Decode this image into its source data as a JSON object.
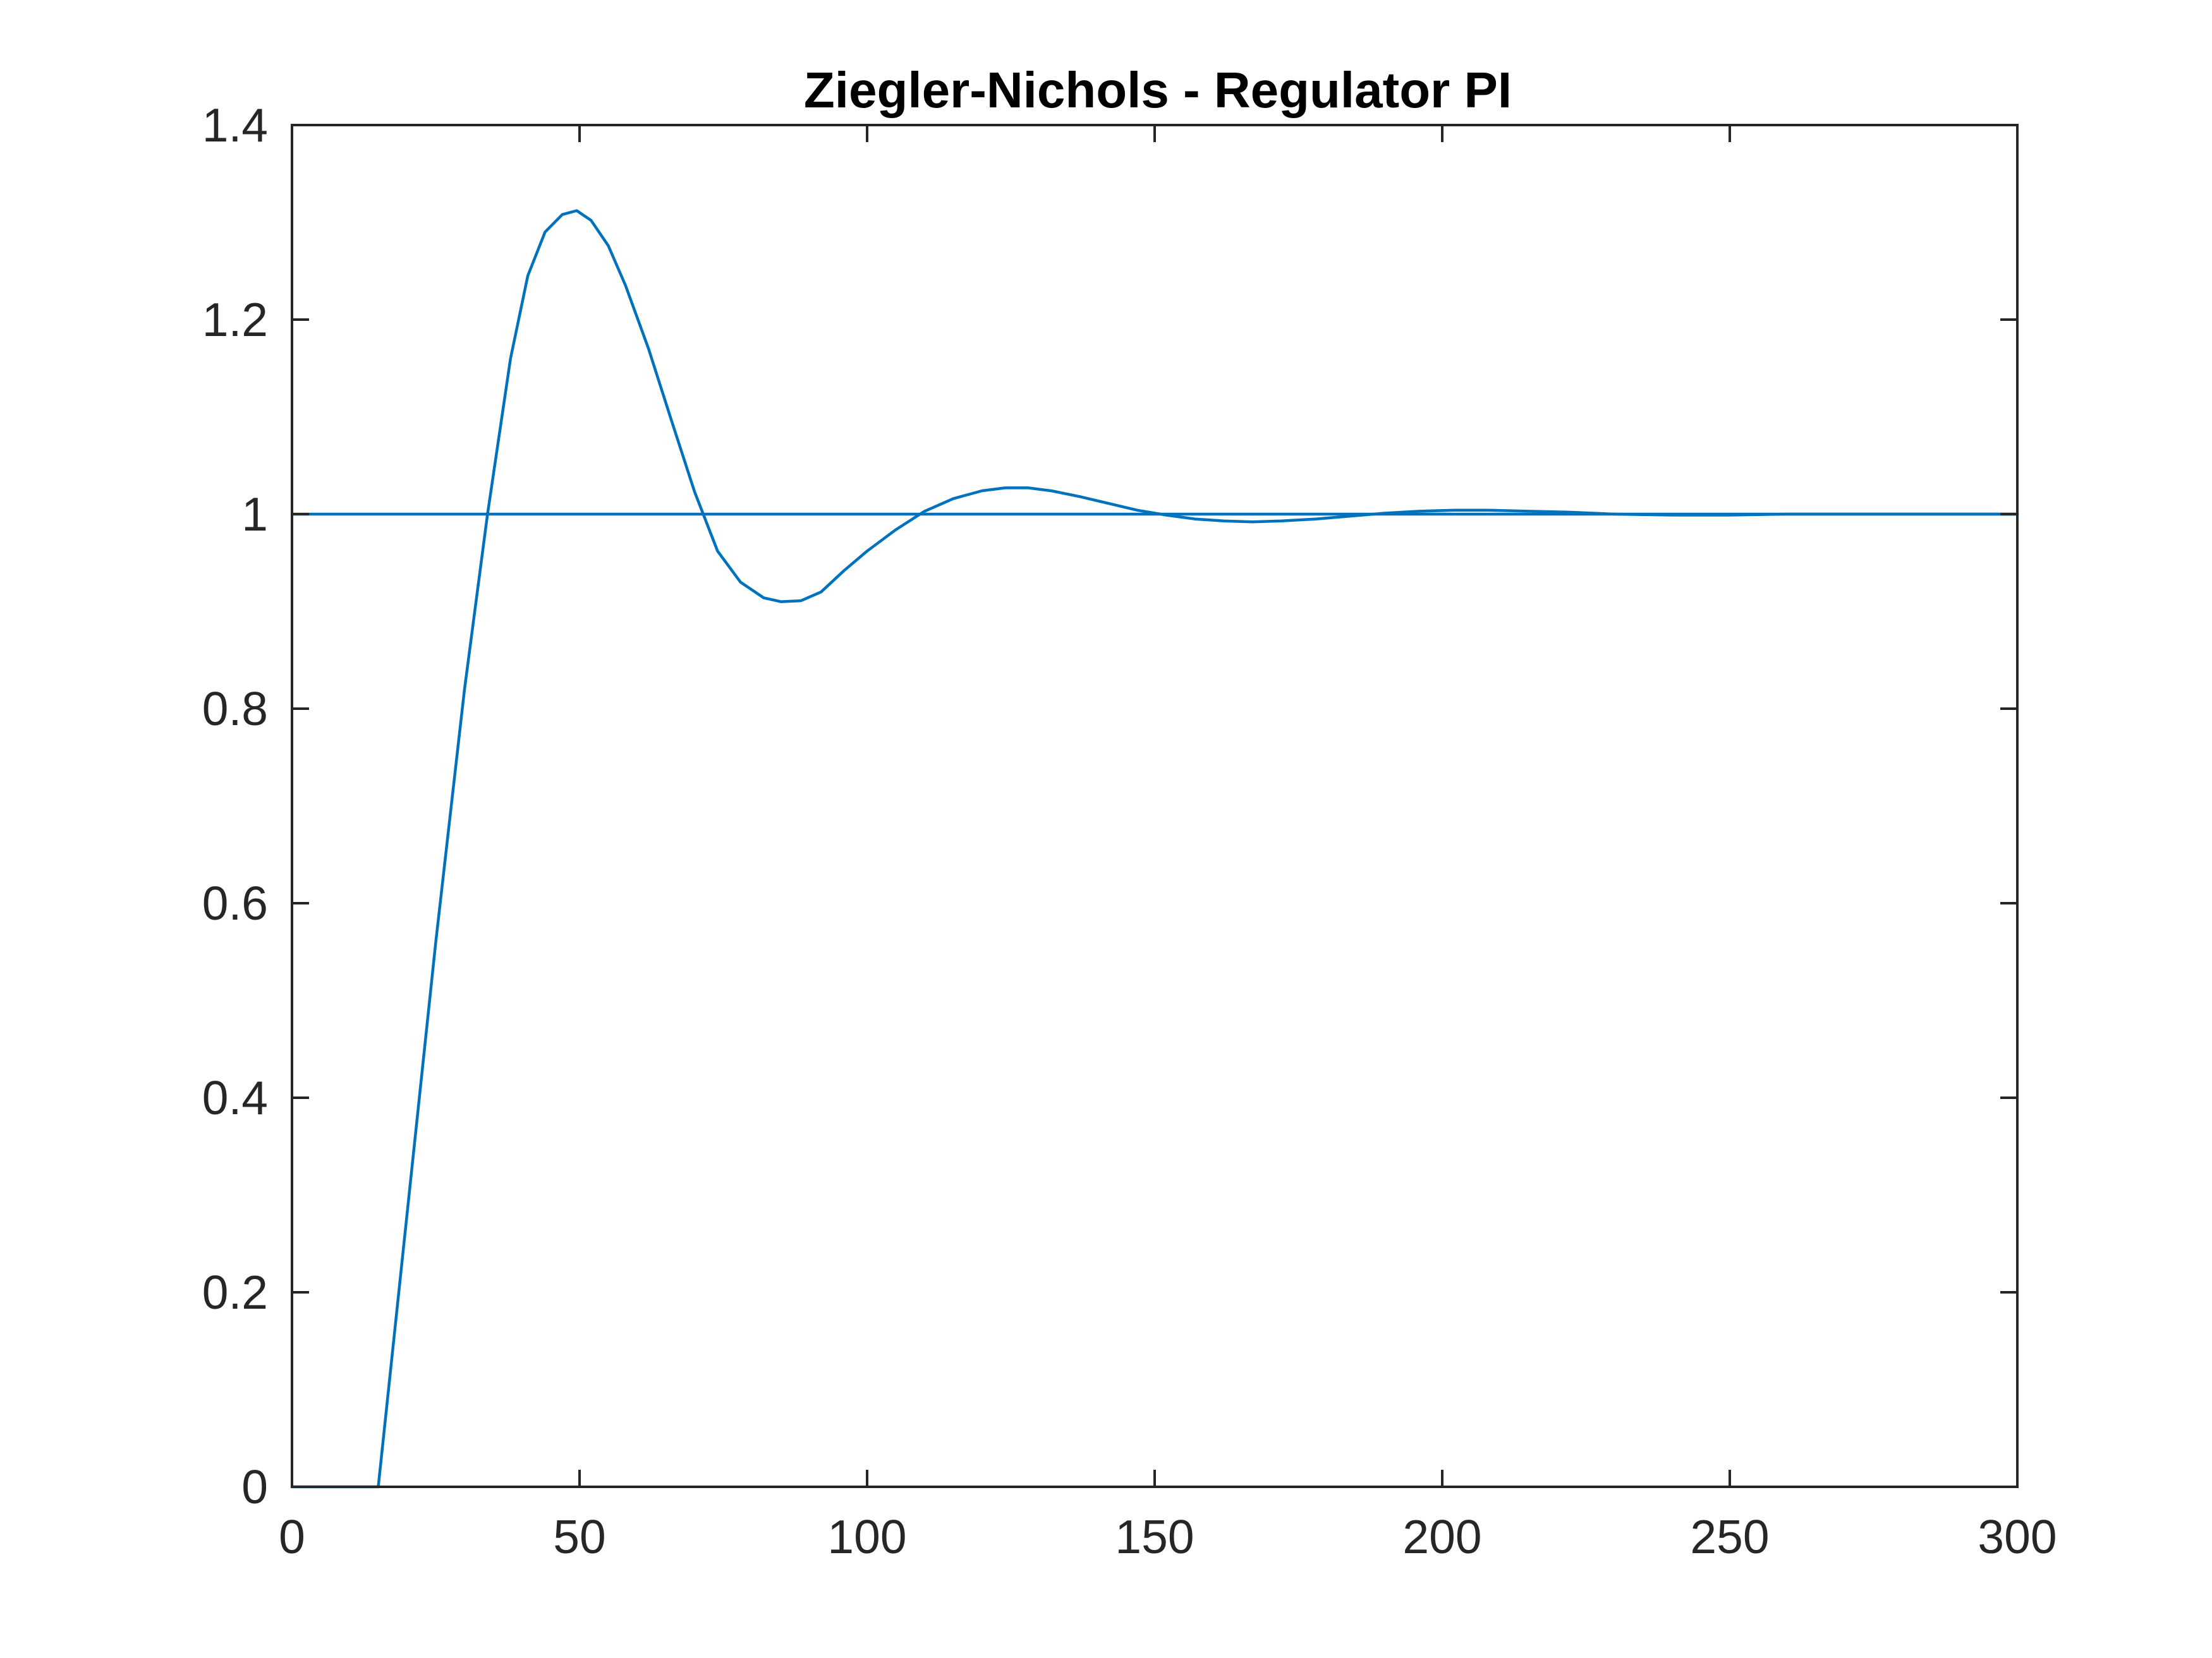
{
  "chart_data": {
    "type": "line",
    "title": "Ziegler-Nichols - Regulator PI",
    "xlabel": "",
    "ylabel": "",
    "xlim": [
      0,
      300
    ],
    "ylim": [
      0,
      1.4
    ],
    "x_ticks": [
      0,
      50,
      100,
      150,
      200,
      250,
      300
    ],
    "x_tick_labels": [
      "0",
      "50",
      "100",
      "150",
      "200",
      "250",
      "300"
    ],
    "y_ticks": [
      0,
      0.2,
      0.4,
      0.6,
      0.8,
      1,
      1.2,
      1.4
    ],
    "y_tick_labels": [
      "0",
      "0.2",
      "0.4",
      "0.6",
      "0.8",
      "1",
      "1.2",
      "1.4"
    ],
    "grid": false,
    "color": "#0072BD",
    "series": [
      {
        "x": [
          0,
          300
        ],
        "y": [
          1,
          1
        ]
      },
      {
        "x": [
          0,
          15,
          20,
          25,
          30,
          34,
          38,
          41,
          44,
          47,
          49.5,
          52,
          55,
          58,
          62,
          66,
          70,
          74,
          78,
          82,
          85,
          88.5,
          92,
          96,
          100,
          105,
          110,
          115,
          120,
          124,
          128,
          132,
          137,
          142,
          147,
          152,
          157,
          162,
          167,
          172,
          178,
          184,
          190,
          196,
          202,
          208,
          215,
          222,
          230,
          240,
          250,
          260,
          270,
          280,
          290,
          300
        ],
        "y": [
          0,
          0,
          0.28,
          0.56,
          0.82,
          1.0,
          1.16,
          1.245,
          1.29,
          1.308,
          1.312,
          1.302,
          1.276,
          1.235,
          1.17,
          1.096,
          1.023,
          0.962,
          0.93,
          0.914,
          0.91,
          0.911,
          0.92,
          0.942,
          0.962,
          0.984,
          1.003,
          1.016,
          1.024,
          1.027,
          1.027,
          1.024,
          1.018,
          1.011,
          1.004,
          0.999,
          0.995,
          0.993,
          0.992,
          0.993,
          0.995,
          0.998,
          1.001,
          1.003,
          1.004,
          1.004,
          1.003,
          1.002,
          1.0,
          0.999,
          0.999,
          1.0,
          1.0,
          1.0,
          1.0,
          1.0
        ]
      }
    ]
  }
}
